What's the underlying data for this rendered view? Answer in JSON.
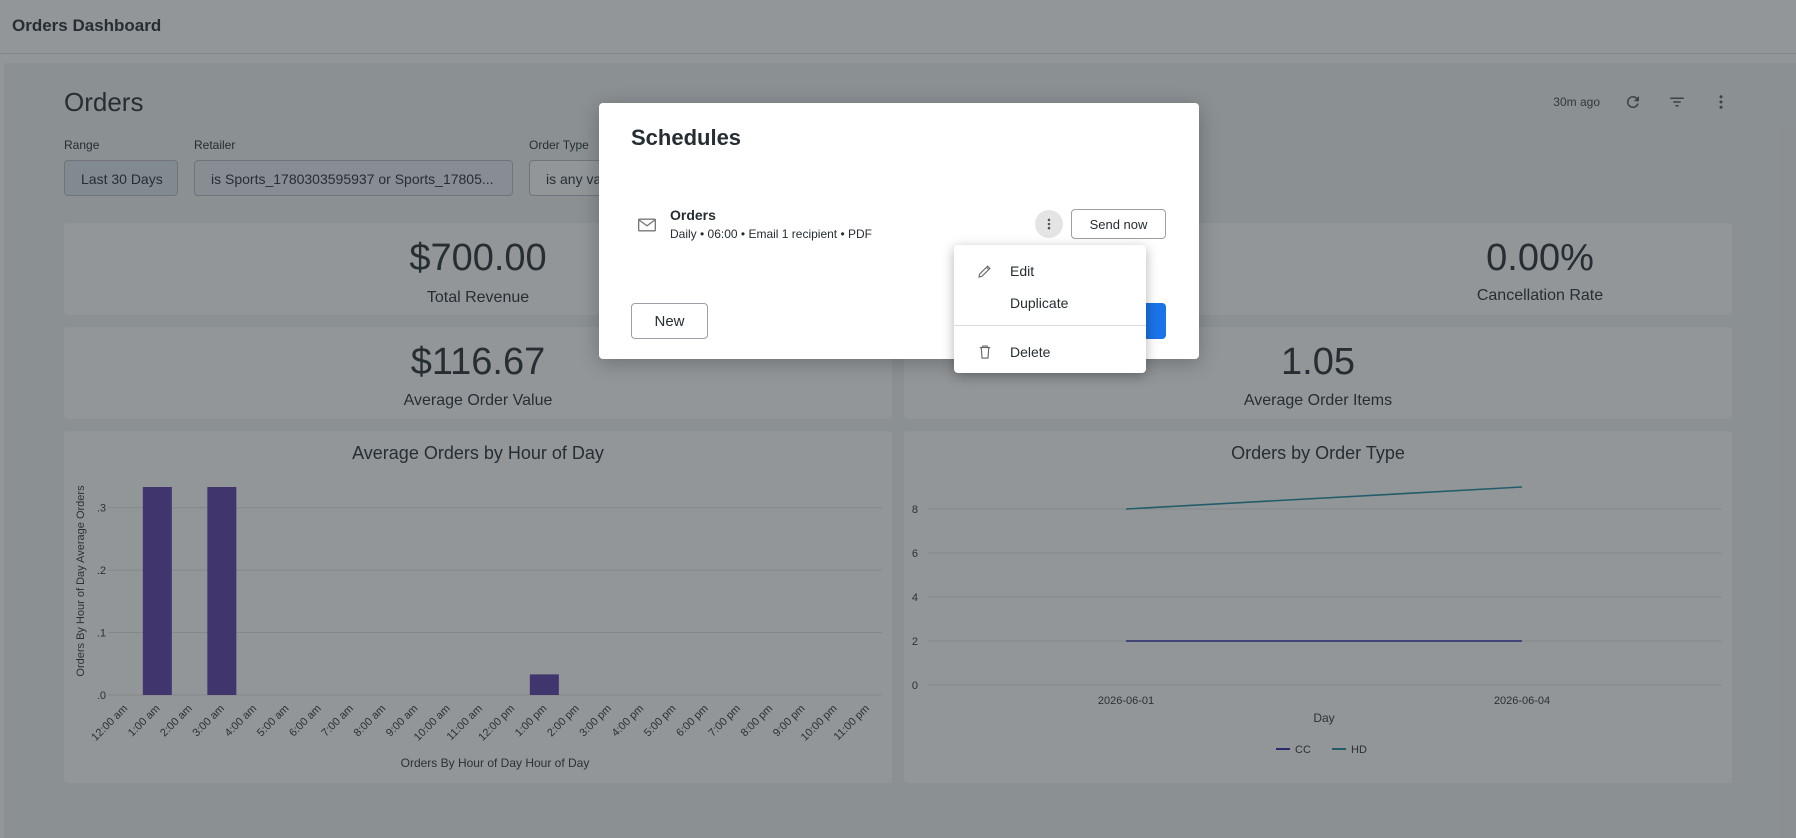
{
  "app": {
    "title": "Orders Dashboard"
  },
  "dashboard": {
    "title": "Orders",
    "updated": "30m ago",
    "icons": [
      "refresh-icon",
      "filter-icon",
      "more-vert-icon"
    ]
  },
  "filters": [
    {
      "label": "Range",
      "value": "Last 30 Days"
    },
    {
      "label": "Retailer",
      "value": "is Sports_1780303595937 or Sports_17805..."
    },
    {
      "label": "Order Type",
      "value": "is any va"
    }
  ],
  "kpis": [
    {
      "value": "$700.00",
      "label": "Total Revenue"
    },
    {
      "value": "0.00%",
      "label": "Cancellation Rate"
    },
    {
      "value": "$116.67",
      "label": "Average Order Value"
    },
    {
      "value": "1.05",
      "label": "Average Order Items"
    }
  ],
  "chart_data": [
    {
      "type": "bar",
      "title": "Average Orders by Hour of Day",
      "xlabel": "Orders By Hour of Day Hour of Day",
      "ylabel": "Orders By Hour of Day Average Orders",
      "categories": [
        "12:00 am",
        "1:00 am",
        "2:00 am",
        "3:00 am",
        "4:00 am",
        "5:00 am",
        "6:00 am",
        "7:00 am",
        "8:00 am",
        "9:00 am",
        "10:00 am",
        "11:00 am",
        "12:00 pm",
        "1:00 pm",
        "2:00 pm",
        "3:00 pm",
        "4:00 pm",
        "5:00 pm",
        "6:00 pm",
        "7:00 pm",
        "8:00 pm",
        "9:00 pm",
        "10:00 pm",
        "11:00 pm"
      ],
      "values": [
        0,
        0.333,
        0,
        0.333,
        0,
        0,
        0,
        0,
        0,
        0,
        0,
        0,
        0,
        0.033,
        0,
        0,
        0,
        0,
        0,
        0,
        0,
        0,
        0,
        0
      ],
      "yticks": [
        ".0",
        ".1",
        ".2",
        ".3"
      ],
      "ylim": [
        0,
        0.333
      ],
      "color": "#5b3fa6"
    },
    {
      "type": "line",
      "title": "Orders by Order Type",
      "xlabel": "Day",
      "ylabel": "",
      "x": [
        "2026-06-01",
        "2026-06-04"
      ],
      "series": [
        {
          "name": "CC",
          "values": [
            2,
            2
          ],
          "color": "#2b2ba0"
        },
        {
          "name": "HD",
          "values": [
            8,
            9
          ],
          "color": "#1f8aa0"
        }
      ],
      "yticks": [
        "0",
        "2",
        "4",
        "6",
        "8"
      ],
      "ylim": [
        0,
        9.5
      ],
      "legend": "bottom"
    }
  ],
  "modal": {
    "title": "Schedules",
    "schedule": {
      "name": "Orders",
      "detail": "Daily • 06:00 • Email 1 recipient • PDF",
      "send_label": "Send now"
    },
    "new_label": "New"
  },
  "menu": {
    "items": [
      {
        "label": "Edit",
        "icon": "pencil-icon"
      },
      {
        "label": "Duplicate",
        "icon": ""
      },
      {
        "label": "Delete",
        "icon": "trash-icon"
      }
    ]
  }
}
